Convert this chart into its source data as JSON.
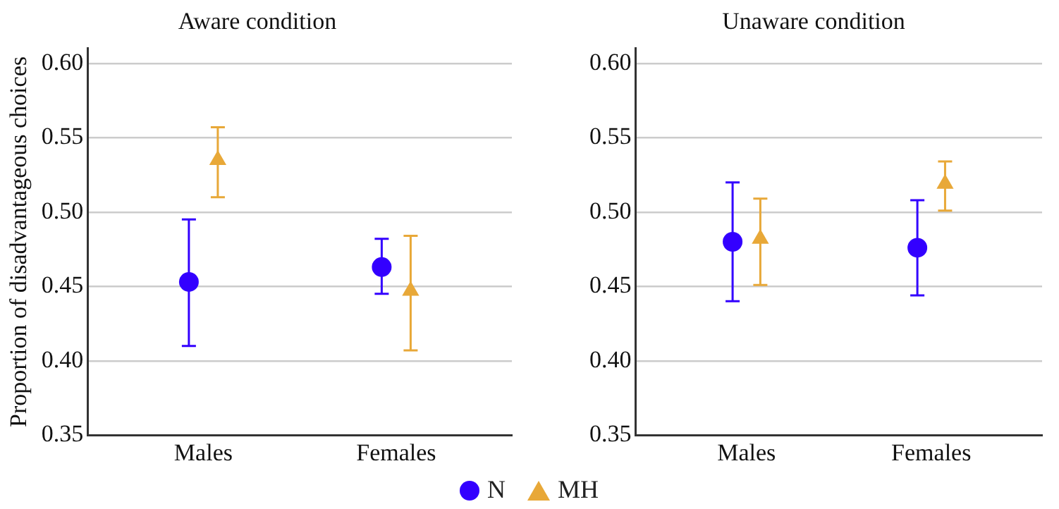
{
  "chart_data": [
    {
      "type": "scatter",
      "title": "Aware condition",
      "ylabel": "Proportion of disadvantageous choices",
      "categories": [
        "Males",
        "Females"
      ],
      "ylim": [
        0.35,
        0.61
      ],
      "yticks": [
        {
          "value": 0.35,
          "label": "0.35"
        },
        {
          "value": 0.4,
          "label": "0.40"
        },
        {
          "value": 0.45,
          "label": "0.45"
        },
        {
          "value": 0.5,
          "label": "0.50"
        },
        {
          "value": 0.55,
          "label": "0.55"
        },
        {
          "value": 0.6,
          "label": "0.60"
        }
      ],
      "grid": "y",
      "legend": "bottom",
      "series": [
        {
          "name": "N",
          "color": "#3300ff",
          "marker": "circle",
          "values": [
            0.453,
            0.463
          ],
          "errors": [
            [
              0.41,
              0.495
            ],
            [
              0.445,
              0.482
            ]
          ]
        },
        {
          "name": "MH",
          "color": "#e8a838",
          "marker": "triangle",
          "values": [
            0.535,
            0.447
          ],
          "errors": [
            [
              0.51,
              0.557
            ],
            [
              0.407,
              0.484
            ]
          ]
        }
      ]
    },
    {
      "type": "scatter",
      "title": "Unaware condition",
      "categories": [
        "Males",
        "Females"
      ],
      "ylim": [
        0.35,
        0.61
      ],
      "yticks": [
        {
          "value": 0.35,
          "label": "0.35"
        },
        {
          "value": 0.4,
          "label": "0.40"
        },
        {
          "value": 0.45,
          "label": "0.45"
        },
        {
          "value": 0.5,
          "label": "0.50"
        },
        {
          "value": 0.55,
          "label": "0.55"
        },
        {
          "value": 0.6,
          "label": "0.60"
        }
      ],
      "grid": "y",
      "series": [
        {
          "color": "#3300ff",
          "marker": "circle",
          "values": [
            0.48,
            0.476
          ],
          "errors": [
            [
              0.44,
              0.52
            ],
            [
              0.444,
              0.508
            ]
          ]
        },
        {
          "color": "#e8a838",
          "marker": "triangle",
          "values": [
            0.482,
            0.519
          ],
          "errors": [
            [
              0.451,
              0.509
            ],
            [
              0.501,
              0.534
            ]
          ]
        }
      ]
    }
  ]
}
